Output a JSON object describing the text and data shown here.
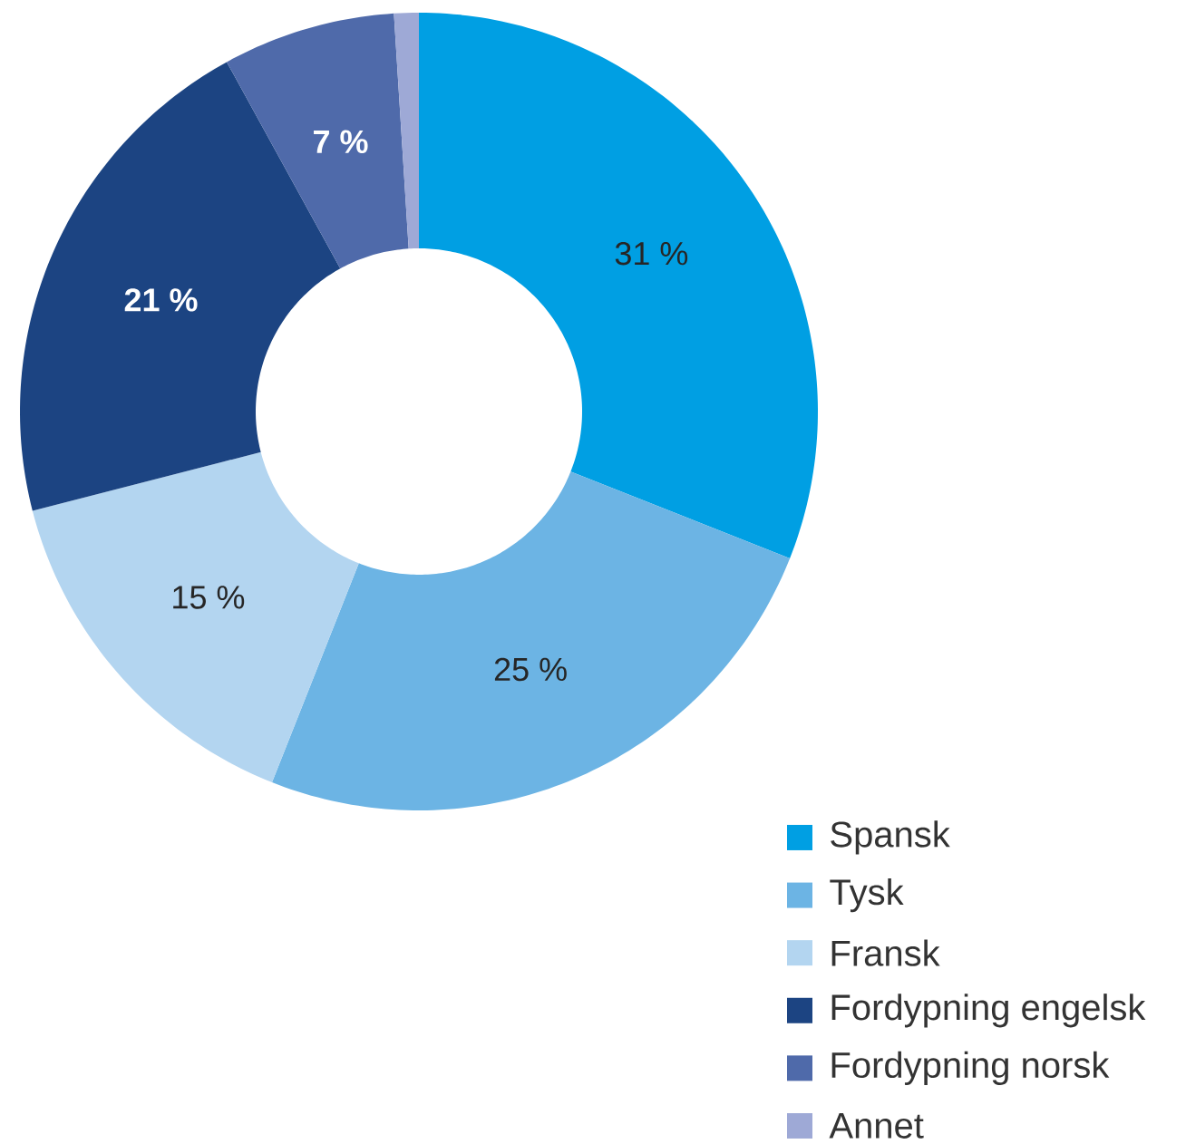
{
  "chart_data": {
    "type": "donut",
    "categories": [
      "Spansk",
      "Tysk",
      "Fransk",
      "Fordypning engelsk",
      "Fordypning norsk",
      "Annet"
    ],
    "values": [
      31,
      25,
      15,
      21,
      7,
      1
    ],
    "colors": [
      "#009fe3",
      "#6cb4e4",
      "#b3d5f0",
      "#1c4482",
      "#4f6aaa",
      "#9ea9d6"
    ],
    "value_labels": [
      "31 %",
      "25 %",
      "15 %",
      "21 %",
      "7 %",
      null
    ],
    "legend": "bottom right"
  }
}
